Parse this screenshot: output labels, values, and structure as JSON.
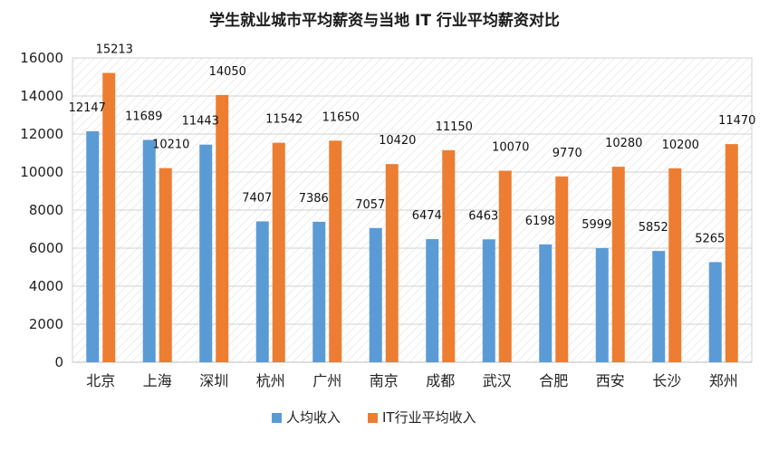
{
  "chart_data": {
    "type": "bar",
    "title": "学生就业城市平均薪资与当地 IT 行业平均薪资对比",
    "categories": [
      "北京",
      "上海",
      "深圳",
      "杭州",
      "广州",
      "南京",
      "成都",
      "武汉",
      "合肥",
      "西安",
      "长沙",
      "郑州"
    ],
    "series": [
      {
        "name": "人均收入",
        "color": "#5b9bd5",
        "values": [
          12147,
          11689,
          11443,
          7407,
          7386,
          7057,
          6474,
          6463,
          6198,
          5999,
          5852,
          5265
        ]
      },
      {
        "name": "IT行业平均收入",
        "color": "#ed7d31",
        "values": [
          15213,
          10210,
          14050,
          11542,
          11650,
          10420,
          11150,
          10070,
          9770,
          10280,
          10200,
          11470
        ]
      }
    ],
    "ylim": [
      0,
      16000
    ],
    "yticks": [
      0,
      2000,
      4000,
      6000,
      8000,
      10000,
      12000,
      14000,
      16000
    ],
    "grid": true,
    "legend_position": "bottom"
  }
}
